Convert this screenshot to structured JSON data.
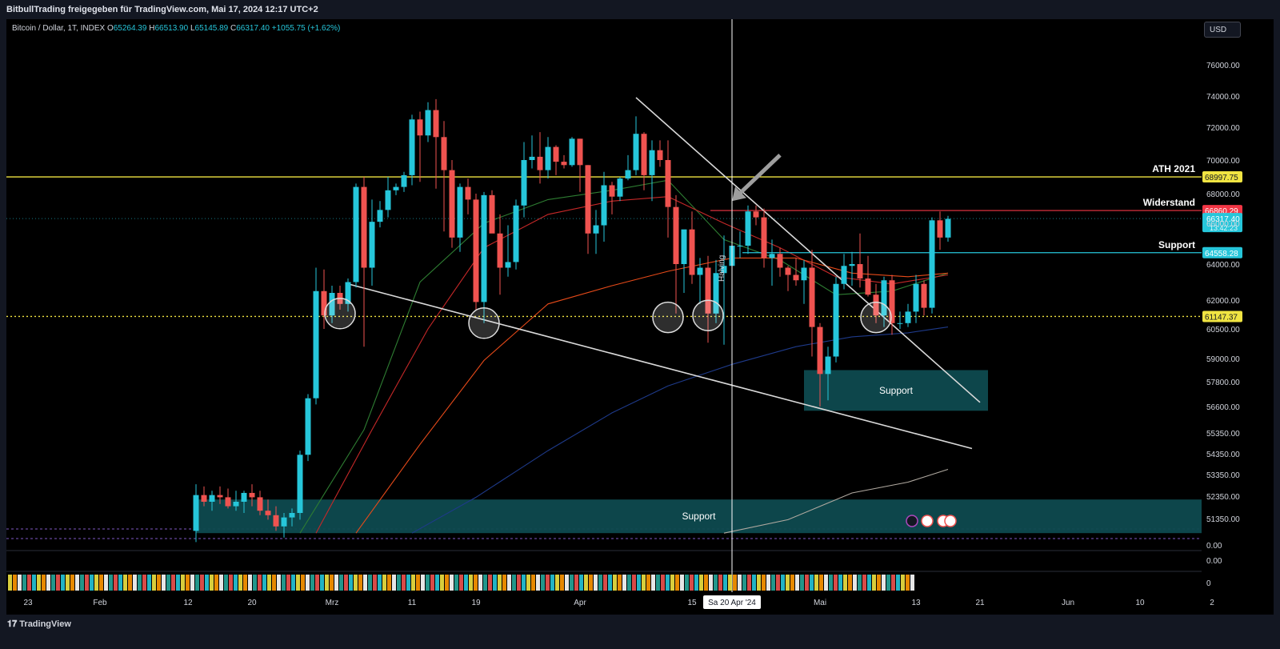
{
  "header": {
    "title": "BitbullTrading freigegeben für TradingView.com, Mai 17, 2024 12:17 UTC+2"
  },
  "legend": {
    "symbol": "Bitcoin / Dollar, 1T, INDEX",
    "o_label": "O",
    "o": "65264.39",
    "h_label": "H",
    "h": "66513.90",
    "l_label": "L",
    "l": "65145.89",
    "c_label": "C",
    "c": "66317.40",
    "change": "+1055.75 (+1.62%)"
  },
  "currency_button": "USD",
  "footer": {
    "brand": "TradingView"
  },
  "colors": {
    "up": "#26c6da",
    "down": "#ef5350",
    "ath_line": "#f0e442",
    "resistance_line": "#f23645",
    "support_line": "#26c6da",
    "zone_fill": "#0e4a4f",
    "trendline": "#d9d9d9"
  },
  "chart_data": {
    "type": "candlestick",
    "symbol": "Bitcoin / Dollar",
    "interval": "1T",
    "x_date_range": [
      "2024-01-23",
      "2024-05-17"
    ],
    "ylim": [
      50300,
      77500
    ],
    "y_ticks": [
      "76000.00",
      "74000.00",
      "72000.00",
      "70000.00",
      "68000.00",
      "66000.00",
      "64000.00",
      "62000.00",
      "60500.00",
      "59000.00",
      "57800.00",
      "56600.00",
      "55350.00",
      "54350.00",
      "53350.00",
      "52350.00",
      "51350.00"
    ],
    "x_ticks": [
      {
        "label": "23",
        "date": "2024-01-23"
      },
      {
        "label": "Feb",
        "date": "2024-02-01"
      },
      {
        "label": "12",
        "date": "2024-02-12"
      },
      {
        "label": "20",
        "date": "2024-02-20"
      },
      {
        "label": "Mrz",
        "date": "2024-03-01"
      },
      {
        "label": "11",
        "date": "2024-03-11"
      },
      {
        "label": "19",
        "date": "2024-03-19"
      },
      {
        "label": "Apr",
        "date": "2024-04-01"
      },
      {
        "label": "15",
        "date": "2024-04-15"
      },
      {
        "label": "Mai",
        "date": "2024-05-01"
      },
      {
        "label": "13",
        "date": "2024-05-13"
      },
      {
        "label": "21",
        "date": "2024-05-21"
      },
      {
        "label": "Jun",
        "date": "2024-06-01"
      },
      {
        "label": "10",
        "date": "2024-06-10"
      },
      {
        "label": "2",
        "date": "2024-06-19"
      }
    ],
    "cursor_label": "Sa 20 Apr '24",
    "cursor_date": "2024-04-20",
    "halving_label": "Halving",
    "candles": [
      {
        "d": "2024-02-13",
        "o": 50800,
        "h": 52900,
        "l": 50300,
        "c": 52400
      },
      {
        "d": "2024-02-14",
        "o": 52400,
        "h": 52800,
        "l": 51900,
        "c": 52100
      },
      {
        "d": "2024-02-15",
        "o": 52100,
        "h": 52600,
        "l": 51700,
        "c": 52400
      },
      {
        "d": "2024-02-16",
        "o": 52400,
        "h": 52800,
        "l": 52000,
        "c": 52300
      },
      {
        "d": "2024-02-17",
        "o": 52300,
        "h": 52700,
        "l": 51800,
        "c": 51900
      },
      {
        "d": "2024-02-18",
        "o": 51900,
        "h": 52600,
        "l": 51700,
        "c": 52100
      },
      {
        "d": "2024-02-19",
        "o": 52100,
        "h": 52600,
        "l": 51600,
        "c": 52500
      },
      {
        "d": "2024-02-20",
        "o": 52500,
        "h": 52900,
        "l": 51900,
        "c": 52300
      },
      {
        "d": "2024-02-21",
        "o": 52300,
        "h": 52600,
        "l": 51500,
        "c": 51700
      },
      {
        "d": "2024-02-22",
        "o": 51700,
        "h": 52200,
        "l": 51300,
        "c": 51500
      },
      {
        "d": "2024-02-23",
        "o": 51500,
        "h": 51900,
        "l": 50800,
        "c": 51000
      },
      {
        "d": "2024-02-24",
        "o": 51000,
        "h": 51600,
        "l": 50500,
        "c": 51400
      },
      {
        "d": "2024-02-25",
        "o": 51400,
        "h": 51800,
        "l": 51000,
        "c": 51600
      },
      {
        "d": "2024-02-26",
        "o": 51600,
        "h": 54500,
        "l": 51300,
        "c": 54300
      },
      {
        "d": "2024-02-27",
        "o": 54300,
        "h": 57200,
        "l": 54000,
        "c": 57000
      },
      {
        "d": "2024-02-28",
        "o": 57000,
        "h": 63800,
        "l": 56700,
        "c": 62500
      },
      {
        "d": "2024-02-29",
        "o": 62500,
        "h": 63700,
        "l": 60500,
        "c": 61200
      },
      {
        "d": "2024-03-01",
        "o": 61200,
        "h": 62800,
        "l": 60800,
        "c": 62400
      },
      {
        "d": "2024-03-02",
        "o": 62400,
        "h": 62800,
        "l": 61500,
        "c": 61800
      },
      {
        "d": "2024-03-03",
        "o": 61800,
        "h": 63200,
        "l": 61400,
        "c": 63000
      },
      {
        "d": "2024-03-04",
        "o": 63000,
        "h": 68600,
        "l": 62700,
        "c": 68400
      },
      {
        "d": "2024-03-05",
        "o": 68400,
        "h": 69000,
        "l": 59600,
        "c": 63800
      },
      {
        "d": "2024-03-06",
        "o": 63800,
        "h": 67600,
        "l": 62800,
        "c": 66100
      },
      {
        "d": "2024-03-07",
        "o": 66100,
        "h": 67500,
        "l": 65800,
        "c": 66900
      },
      {
        "d": "2024-03-08",
        "o": 66900,
        "h": 69000,
        "l": 66400,
        "c": 68200
      },
      {
        "d": "2024-03-09",
        "o": 68200,
        "h": 68600,
        "l": 67900,
        "c": 68400
      },
      {
        "d": "2024-03-10",
        "o": 68400,
        "h": 69300,
        "l": 68100,
        "c": 69100
      },
      {
        "d": "2024-03-11",
        "o": 69100,
        "h": 72800,
        "l": 68500,
        "c": 72500
      },
      {
        "d": "2024-03-12",
        "o": 72500,
        "h": 73000,
        "l": 68700,
        "c": 71500
      },
      {
        "d": "2024-03-13",
        "o": 71500,
        "h": 73600,
        "l": 71100,
        "c": 73100
      },
      {
        "d": "2024-03-14",
        "o": 73100,
        "h": 73800,
        "l": 68300,
        "c": 71400
      },
      {
        "d": "2024-03-15",
        "o": 71400,
        "h": 72400,
        "l": 65600,
        "c": 69400
      },
      {
        "d": "2024-03-16",
        "o": 69400,
        "h": 70000,
        "l": 64800,
        "c": 65300
      },
      {
        "d": "2024-03-17",
        "o": 65300,
        "h": 68600,
        "l": 64600,
        "c": 68400
      },
      {
        "d": "2024-03-18",
        "o": 68400,
        "h": 68900,
        "l": 66600,
        "c": 67600
      },
      {
        "d": "2024-03-19",
        "o": 67600,
        "h": 68000,
        "l": 61500,
        "c": 61900
      },
      {
        "d": "2024-03-20",
        "o": 61900,
        "h": 68100,
        "l": 60800,
        "c": 67900
      },
      {
        "d": "2024-03-21",
        "o": 67900,
        "h": 68200,
        "l": 65600,
        "c": 65500
      },
      {
        "d": "2024-03-22",
        "o": 65500,
        "h": 66600,
        "l": 62300,
        "c": 63800
      },
      {
        "d": "2024-03-23",
        "o": 63800,
        "h": 65900,
        "l": 63300,
        "c": 64100
      },
      {
        "d": "2024-03-24",
        "o": 64100,
        "h": 67600,
        "l": 63700,
        "c": 67200
      },
      {
        "d": "2024-03-25",
        "o": 67200,
        "h": 71100,
        "l": 66400,
        "c": 70000
      },
      {
        "d": "2024-03-26",
        "o": 70000,
        "h": 71500,
        "l": 69500,
        "c": 70200
      },
      {
        "d": "2024-03-27",
        "o": 70200,
        "h": 71700,
        "l": 68600,
        "c": 69400
      },
      {
        "d": "2024-03-28",
        "o": 69400,
        "h": 71400,
        "l": 68900,
        "c": 70800
      },
      {
        "d": "2024-03-29",
        "o": 70800,
        "h": 70900,
        "l": 69100,
        "c": 69900
      },
      {
        "d": "2024-03-30",
        "o": 69900,
        "h": 70300,
        "l": 69500,
        "c": 69700
      },
      {
        "d": "2024-03-31",
        "o": 69700,
        "h": 71400,
        "l": 69600,
        "c": 71300
      },
      {
        "d": "2024-04-01",
        "o": 71300,
        "h": 71300,
        "l": 68100,
        "c": 69700
      },
      {
        "d": "2024-04-02",
        "o": 69700,
        "h": 69700,
        "l": 64500,
        "c": 65500
      },
      {
        "d": "2024-04-03",
        "o": 65500,
        "h": 66900,
        "l": 64500,
        "c": 65900
      },
      {
        "d": "2024-04-04",
        "o": 65900,
        "h": 69300,
        "l": 65100,
        "c": 68500
      },
      {
        "d": "2024-04-05",
        "o": 68500,
        "h": 68700,
        "l": 66600,
        "c": 67800
      },
      {
        "d": "2024-04-06",
        "o": 67800,
        "h": 69000,
        "l": 67500,
        "c": 68900
      },
      {
        "d": "2024-04-07",
        "o": 68900,
        "h": 70300,
        "l": 68800,
        "c": 69400
      },
      {
        "d": "2024-04-08",
        "o": 69400,
        "h": 72700,
        "l": 69100,
        "c": 71600
      },
      {
        "d": "2024-04-09",
        "o": 71600,
        "h": 71700,
        "l": 68200,
        "c": 69100
      },
      {
        "d": "2024-04-10",
        "o": 69100,
        "h": 71200,
        "l": 67500,
        "c": 70600
      },
      {
        "d": "2024-04-11",
        "o": 70600,
        "h": 71200,
        "l": 69600,
        "c": 70000
      },
      {
        "d": "2024-04-12",
        "o": 70000,
        "h": 71200,
        "l": 65300,
        "c": 67100
      },
      {
        "d": "2024-04-13",
        "o": 67100,
        "h": 67900,
        "l": 61300,
        "c": 64000
      },
      {
        "d": "2024-04-14",
        "o": 64000,
        "h": 65600,
        "l": 62400,
        "c": 65700
      },
      {
        "d": "2024-04-15",
        "o": 65700,
        "h": 66800,
        "l": 62900,
        "c": 63400
      },
      {
        "d": "2024-04-16",
        "o": 63400,
        "h": 64300,
        "l": 61800,
        "c": 63800
      },
      {
        "d": "2024-04-17",
        "o": 63800,
        "h": 64400,
        "l": 59800,
        "c": 61300
      },
      {
        "d": "2024-04-18",
        "o": 61300,
        "h": 64200,
        "l": 60800,
        "c": 63500
      },
      {
        "d": "2024-04-19",
        "o": 63500,
        "h": 65400,
        "l": 59700,
        "c": 63900
      },
      {
        "d": "2024-04-20",
        "o": 63900,
        "h": 65400,
        "l": 63200,
        "c": 64900
      },
      {
        "d": "2024-04-21",
        "o": 64900,
        "h": 65600,
        "l": 64300,
        "c": 64900
      },
      {
        "d": "2024-04-22",
        "o": 64900,
        "h": 67200,
        "l": 64500,
        "c": 66800
      },
      {
        "d": "2024-04-23",
        "o": 66800,
        "h": 67200,
        "l": 65900,
        "c": 66400
      },
      {
        "d": "2024-04-24",
        "o": 66400,
        "h": 67000,
        "l": 63800,
        "c": 64300
      },
      {
        "d": "2024-04-25",
        "o": 64300,
        "h": 65200,
        "l": 62800,
        "c": 64500
      },
      {
        "d": "2024-04-26",
        "o": 64500,
        "h": 64800,
        "l": 63300,
        "c": 63800
      },
      {
        "d": "2024-04-27",
        "o": 63800,
        "h": 63900,
        "l": 62500,
        "c": 63400
      },
      {
        "d": "2024-04-28",
        "o": 63400,
        "h": 64300,
        "l": 62800,
        "c": 63100
      },
      {
        "d": "2024-04-29",
        "o": 63100,
        "h": 64200,
        "l": 61800,
        "c": 63800
      },
      {
        "d": "2024-04-30",
        "o": 63800,
        "h": 64700,
        "l": 59100,
        "c": 60600
      },
      {
        "d": "2024-05-01",
        "o": 60600,
        "h": 60800,
        "l": 56600,
        "c": 58200
      },
      {
        "d": "2024-05-02",
        "o": 58200,
        "h": 59600,
        "l": 56900,
        "c": 59100
      },
      {
        "d": "2024-05-03",
        "o": 59100,
        "h": 63300,
        "l": 58800,
        "c": 62900
      },
      {
        "d": "2024-05-04",
        "o": 62900,
        "h": 64500,
        "l": 62600,
        "c": 63900
      },
      {
        "d": "2024-05-05",
        "o": 63900,
        "h": 64600,
        "l": 62800,
        "c": 64000
      },
      {
        "d": "2024-05-06",
        "o": 64000,
        "h": 65500,
        "l": 62700,
        "c": 63200
      },
      {
        "d": "2024-05-07",
        "o": 63200,
        "h": 64400,
        "l": 62200,
        "c": 62300
      },
      {
        "d": "2024-05-08",
        "o": 62300,
        "h": 62900,
        "l": 60800,
        "c": 61200
      },
      {
        "d": "2024-05-09",
        "o": 61200,
        "h": 63300,
        "l": 60600,
        "c": 63100
      },
      {
        "d": "2024-05-10",
        "o": 63100,
        "h": 63400,
        "l": 60200,
        "c": 60800
      },
      {
        "d": "2024-05-11",
        "o": 60800,
        "h": 61400,
        "l": 60500,
        "c": 60800
      },
      {
        "d": "2024-05-12",
        "o": 60800,
        "h": 61800,
        "l": 60600,
        "c": 61400
      },
      {
        "d": "2024-05-13",
        "o": 61400,
        "h": 63400,
        "l": 60800,
        "c": 62900
      },
      {
        "d": "2024-05-14",
        "o": 62900,
        "h": 63100,
        "l": 61200,
        "c": 61600
      },
      {
        "d": "2024-05-15",
        "o": 61600,
        "h": 66400,
        "l": 61300,
        "c": 66200
      },
      {
        "d": "2024-05-16",
        "o": 66200,
        "h": 66800,
        "l": 64700,
        "c": 65300
      },
      {
        "d": "2024-05-17",
        "o": 65300,
        "h": 66500,
        "l": 65100,
        "c": 66300
      }
    ],
    "moving_averages": [
      {
        "color": "#2e7d32",
        "points": [
          [
            "2024-02-26",
            50700
          ],
          [
            "2024-03-05",
            55500
          ],
          [
            "2024-03-12",
            63000
          ],
          [
            "2024-03-20",
            66000
          ],
          [
            "2024-03-28",
            67600
          ],
          [
            "2024-04-05",
            68200
          ],
          [
            "2024-04-12",
            68800
          ],
          [
            "2024-04-19",
            65200
          ],
          [
            "2024-04-26",
            64200
          ],
          [
            "2024-05-03",
            62300
          ],
          [
            "2024-05-10",
            62500
          ],
          [
            "2024-05-17",
            63500
          ]
        ]
      },
      {
        "color": "#c62828",
        "points": [
          [
            "2024-02-28",
            50700
          ],
          [
            "2024-03-06",
            55500
          ],
          [
            "2024-03-13",
            60500
          ],
          [
            "2024-03-20",
            64800
          ],
          [
            "2024-03-28",
            66600
          ],
          [
            "2024-04-05",
            67500
          ],
          [
            "2024-04-12",
            67800
          ],
          [
            "2024-04-19",
            66000
          ],
          [
            "2024-04-26",
            64800
          ],
          [
            "2024-05-03",
            63300
          ],
          [
            "2024-05-10",
            62900
          ],
          [
            "2024-05-17",
            63400
          ]
        ]
      },
      {
        "color": "#e64a19",
        "points": [
          [
            "2024-03-04",
            50700
          ],
          [
            "2024-03-12",
            54800
          ],
          [
            "2024-03-20",
            58900
          ],
          [
            "2024-03-28",
            61800
          ],
          [
            "2024-04-05",
            62800
          ],
          [
            "2024-04-12",
            63600
          ],
          [
            "2024-04-20",
            64300
          ],
          [
            "2024-04-28",
            64300
          ],
          [
            "2024-05-05",
            63500
          ],
          [
            "2024-05-12",
            63300
          ],
          [
            "2024-05-17",
            63500
          ]
        ]
      },
      {
        "color": "#1e3a8a",
        "points": [
          [
            "2024-03-11",
            50700
          ],
          [
            "2024-03-19",
            52300
          ],
          [
            "2024-03-28",
            54500
          ],
          [
            "2024-04-05",
            56300
          ],
          [
            "2024-04-12",
            57600
          ],
          [
            "2024-04-20",
            58700
          ],
          [
            "2024-04-28",
            59600
          ],
          [
            "2024-05-05",
            60100
          ],
          [
            "2024-05-12",
            60300
          ],
          [
            "2024-05-17",
            60600
          ]
        ]
      },
      {
        "color": "#b0a9a0",
        "points": [
          [
            "2024-04-19",
            50700
          ],
          [
            "2024-04-27",
            51300
          ],
          [
            "2024-05-05",
            52500
          ],
          [
            "2024-05-12",
            53000
          ],
          [
            "2024-05-17",
            53600
          ]
        ]
      }
    ],
    "levels": [
      {
        "name": "ATH 2021",
        "value": 68997.75,
        "price_label": "68997.75",
        "style": "ath"
      },
      {
        "name": "Widerstand",
        "value": 66860.29,
        "price_label": "66860.29",
        "style": "resistance"
      },
      {
        "name": "Support",
        "value": 64558.28,
        "price_label": "64558.28",
        "style": "support"
      },
      {
        "name": "",
        "value": 61147.37,
        "price_label": "61147.37",
        "style": "dotted"
      }
    ],
    "current_price": {
      "value": 66317.4,
      "label": "66317.40",
      "countdown": "13:42:23"
    },
    "zones": [
      {
        "label": "Support",
        "from": "2024-04-29",
        "to": "2024-05-22",
        "low": 56400,
        "high": 58400
      },
      {
        "label": "Support",
        "from": "2024-02-13",
        "to": "2024-06-19",
        "low": 50700,
        "high": 52200
      }
    ],
    "trendlines": [
      {
        "from": [
          "2024-04-08",
          73900
        ],
        "to": [
          "2024-05-21",
          56800
        ]
      },
      {
        "from": [
          "2024-03-03",
          62900
        ],
        "to": [
          "2024-05-20",
          54600
        ]
      }
    ],
    "circles": [
      {
        "date": "2024-03-02",
        "value": 61300
      },
      {
        "date": "2024-03-20",
        "value": 60800
      },
      {
        "date": "2024-04-12",
        "value": 61100
      },
      {
        "date": "2024-04-17",
        "value": 61200
      },
      {
        "date": "2024-05-08",
        "value": 61100
      }
    ],
    "arrow": {
      "from": [
        "2024-04-26",
        70300
      ],
      "to": [
        "2024-04-20",
        67500
      ]
    },
    "indicator_pane": {
      "labels": [
        "0.00",
        "0.00",
        "0"
      ]
    },
    "event_markers": [
      "lightning",
      "us-flag",
      "us-flag",
      "us-flag"
    ]
  }
}
